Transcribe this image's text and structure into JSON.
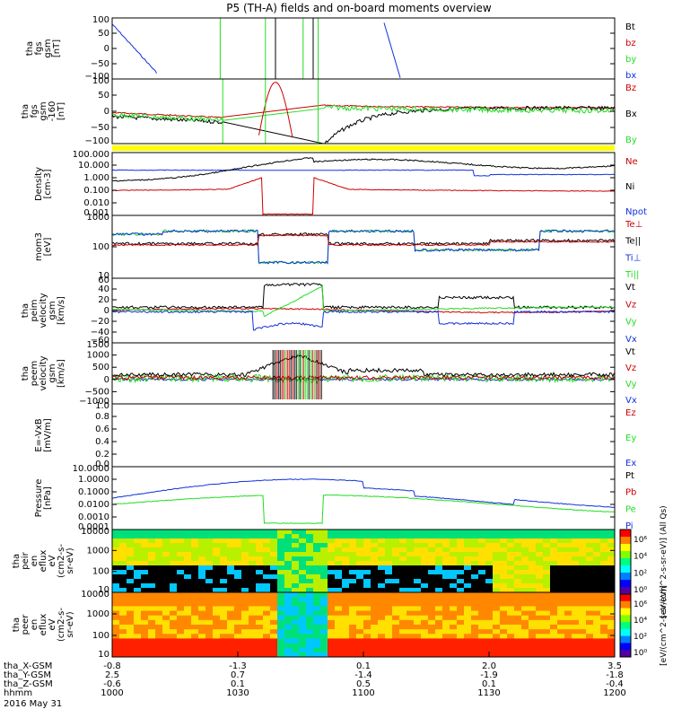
{
  "title": "P5 (TH-A) fields and on-board moments overview",
  "colors": {
    "black": "#000000",
    "red": "#cc0000",
    "green": "#22dd22",
    "blue": "#1030dd",
    "yellow": "#ffff00"
  },
  "chart_data": [
    {
      "type": "line",
      "panel": 1,
      "ylabel": [
        "tha",
        "fgs",
        "gsm",
        "[nT]"
      ],
      "yticks": [
        "100",
        "50",
        "0",
        "−50",
        "−100"
      ],
      "ylim": [
        -100,
        100
      ],
      "legend": [
        {
          "name": "Bt",
          "color": "black"
        },
        {
          "name": "bz",
          "color": "red"
        },
        {
          "name": "by",
          "color": "green"
        },
        {
          "name": "bx",
          "color": "blue"
        }
      ]
    },
    {
      "type": "line",
      "panel": 2,
      "ylabel": [
        "tha",
        "fgs",
        "gsm",
        "-160",
        "[nT]"
      ],
      "yticks": [
        "100",
        "50",
        "0",
        "−50",
        "−100"
      ],
      "ylim": [
        -120,
        120
      ],
      "legend": [
        {
          "name": "Bz",
          "color": "red"
        },
        {
          "name": "Bx",
          "color": "black"
        },
        {
          "name": "By",
          "color": "green"
        }
      ]
    },
    {
      "type": "line",
      "panel": 3,
      "ylabel": [
        "Density",
        "[cm-3]"
      ],
      "yticks": [
        "100.000",
        "10.000",
        "1.000",
        "0.100",
        "0.010",
        "0.001"
      ],
      "log": true,
      "legend": [
        {
          "name": "Ne",
          "color": "red"
        },
        {
          "name": "Ni",
          "color": "black"
        },
        {
          "name": "Npot",
          "color": "blue"
        }
      ]
    },
    {
      "type": "line",
      "panel": 4,
      "ylabel": [
        "mom3",
        "[eV]"
      ],
      "yticks": [
        "1000",
        "100",
        "10"
      ],
      "log": true,
      "legend": [
        {
          "name": "Te⊥",
          "color": "red"
        },
        {
          "name": "Te||",
          "color": "black"
        },
        {
          "name": "Ti⊥",
          "color": "blue"
        },
        {
          "name": "Ti||",
          "color": "green"
        }
      ]
    },
    {
      "type": "line",
      "panel": 5,
      "ylabel": [
        "tha",
        "peim",
        "velocity",
        "gsm",
        "[km/s]"
      ],
      "yticks": [
        "60",
        "40",
        "20",
        "0",
        "−20",
        "−40",
        "−60"
      ],
      "ylim": [
        -60,
        60
      ],
      "legend": [
        {
          "name": "Vt",
          "color": "black"
        },
        {
          "name": "Vz",
          "color": "red"
        },
        {
          "name": "Vy",
          "color": "green"
        },
        {
          "name": "Vx",
          "color": "blue"
        }
      ]
    },
    {
      "type": "line",
      "panel": 6,
      "ylabel": [
        "tha",
        "peem",
        "velocity",
        "gsm",
        "[km/s]"
      ],
      "yticks": [
        "1500",
        "1000",
        "500",
        "0",
        "−500",
        "−1000"
      ],
      "ylim": [
        -1000,
        1500
      ],
      "legend": [
        {
          "name": "Vt",
          "color": "black"
        },
        {
          "name": "Vz",
          "color": "red"
        },
        {
          "name": "Vy",
          "color": "green"
        },
        {
          "name": "Vx",
          "color": "blue"
        }
      ]
    },
    {
      "type": "line",
      "panel": 7,
      "ylabel": [
        "E=-VxB",
        "[mV/m]"
      ],
      "yticks": [
        "1.0",
        "0.8",
        "0.6",
        "0.4",
        "0.2",
        "0.0"
      ],
      "ylim": [
        0,
        1
      ],
      "legend": [
        {
          "name": "Ez",
          "color": "red"
        },
        {
          "name": "Ey",
          "color": "green"
        },
        {
          "name": "Ex",
          "color": "blue"
        }
      ]
    },
    {
      "type": "line",
      "panel": 8,
      "ylabel": [
        "Pressure",
        "[nPa]"
      ],
      "yticks": [
        "10.0000",
        "1.0000",
        "0.1000",
        "0.0100",
        "0.0010",
        "0.0001"
      ],
      "log": true,
      "legend": [
        {
          "name": "Pt",
          "color": "black"
        },
        {
          "name": "Pb",
          "color": "red"
        },
        {
          "name": "Pe",
          "color": "green"
        },
        {
          "name": "Pi",
          "color": "blue"
        }
      ]
    },
    {
      "type": "heatmap",
      "panel": 9,
      "ylabel": [
        "tha",
        "peir",
        "en",
        "eflux",
        "eV",
        "(cm2-s-",
        "sr-eV)"
      ],
      "yticks": [
        "10000",
        "1000",
        "100",
        "10"
      ],
      "log": true
    },
    {
      "type": "heatmap",
      "panel": 10,
      "ylabel": [
        "tha",
        "peer",
        "en",
        "eflux",
        "eV",
        "(cm2-s-",
        "sr-eV)"
      ],
      "yticks": [
        "10000",
        "1000",
        "100",
        "10"
      ],
      "log": true
    }
  ],
  "colorbar_top": {
    "ticks": [
      "10⁶",
      "10⁴",
      "10²",
      "10⁰"
    ],
    "label": "[eV/(cm^2-s-sr-eV)] (All Qs)"
  },
  "colorbar_bottom": {
    "ticks": [
      "10⁶",
      "10⁴",
      "10²",
      "10⁰"
    ],
    "label": "[eV/(cm^2-s-sr-eV)]"
  },
  "x_axis": {
    "rows": [
      {
        "label": "tha_X-GSM",
        "values": [
          "-0.8",
          "-1.3",
          "0.1",
          "2.0",
          "3.5"
        ]
      },
      {
        "label": "tha_Y-GSM",
        "values": [
          "2.5",
          "0.7",
          "-1.4",
          "-1.9",
          "-1.8"
        ]
      },
      {
        "label": "tha_Z-GSM",
        "values": [
          "-0.6",
          "0.1",
          "0.5",
          "0.1",
          "-0.4"
        ]
      },
      {
        "label": "hhmm",
        "values": [
          "1000",
          "1030",
          "1100",
          "1130",
          "1200"
        ]
      }
    ],
    "date": "2016 May 31"
  }
}
